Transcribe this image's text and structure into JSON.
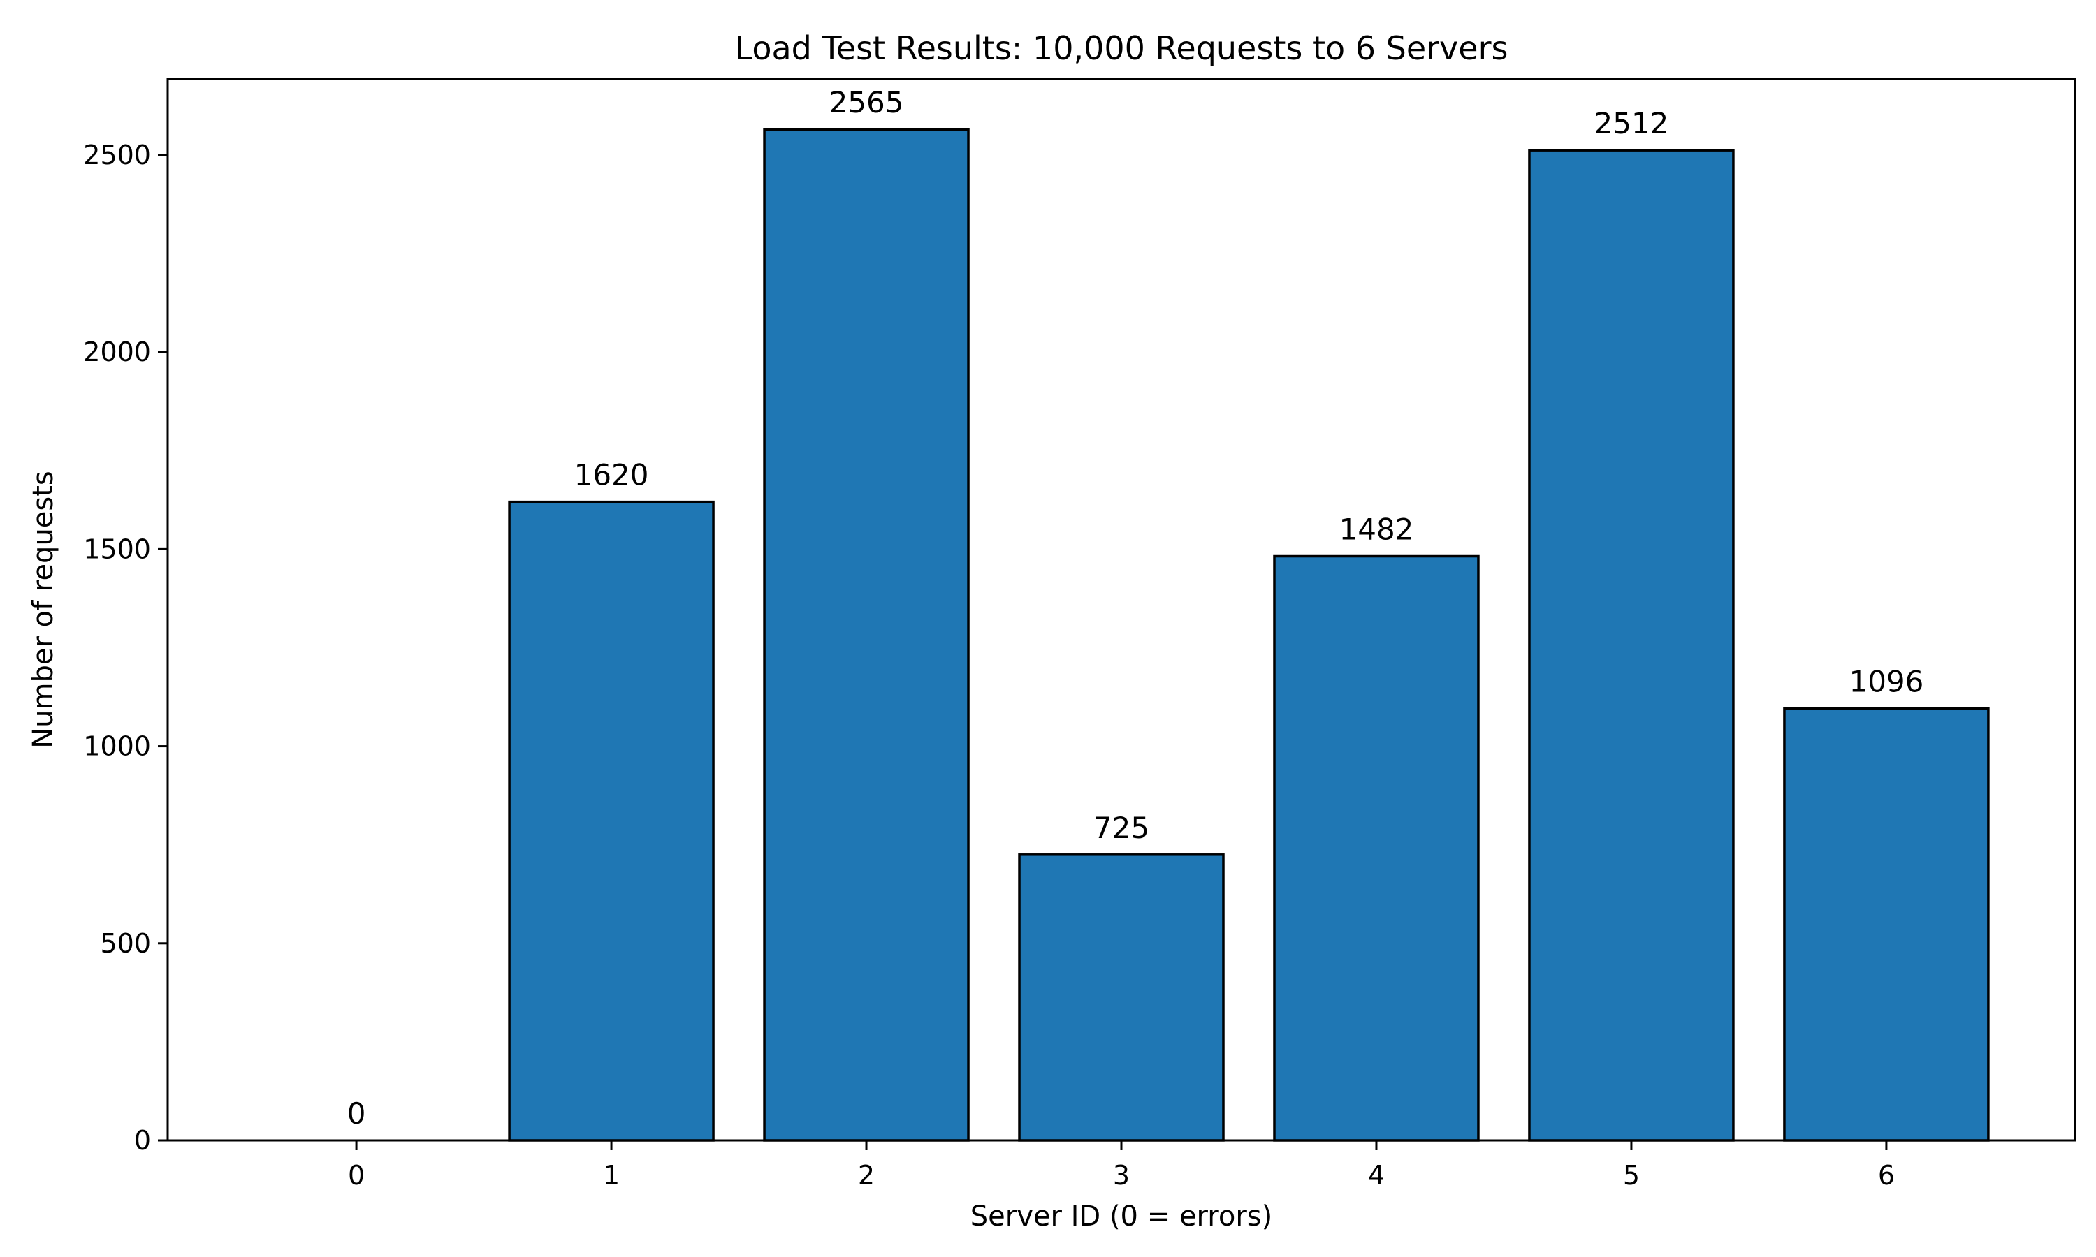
{
  "chart_data": {
    "type": "bar",
    "title": "Load Test Results: 10,000 Requests to 6 Servers",
    "xlabel": "Server ID (0 = errors)",
    "ylabel": "Number of requests",
    "categories": [
      "0",
      "1",
      "2",
      "3",
      "4",
      "5",
      "6"
    ],
    "values": [
      0,
      1620,
      2565,
      725,
      1482,
      2512,
      1096
    ],
    "data_labels": [
      "0",
      "1620",
      "2565",
      "725",
      "1482",
      "2512",
      "1096"
    ],
    "ylim": [
      0,
      2693
    ],
    "yticks": [
      0,
      500,
      1000,
      1500,
      2000,
      2500
    ],
    "ytick_labels": [
      "0",
      "500",
      "1000",
      "1500",
      "2000",
      "2500"
    ],
    "grid": false,
    "legend": "none",
    "bar_color": "#1f77b4",
    "edge_color": "#000000"
  }
}
